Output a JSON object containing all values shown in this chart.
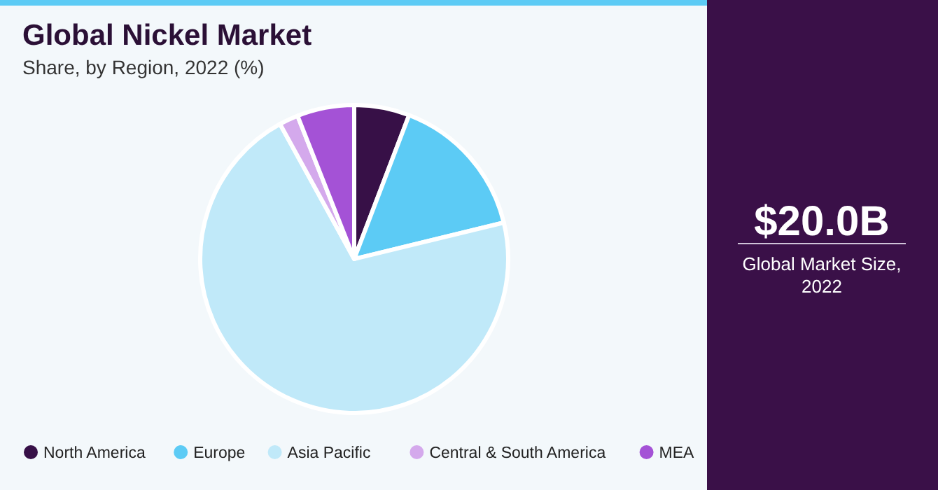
{
  "chart_data": {
    "type": "pie",
    "title": "Global Nickel Market",
    "subtitle": "Share, by Region, 2022 (%)",
    "categories": [
      "North America",
      "Europe",
      "Asia Pacific",
      "Central & South America",
      "MEA"
    ],
    "values": [
      5.8,
      15.4,
      70.8,
      2.0,
      6.0
    ],
    "colors": [
      "#371047",
      "#5ccbf5",
      "#c0e9f9",
      "#d4a9ec",
      "#a452d6"
    ],
    "legend": "bottom",
    "annotations": [
      "$20.0B",
      "Global Market Size, 2022"
    ]
  }
}
